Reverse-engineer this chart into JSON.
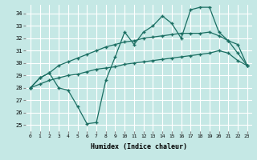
{
  "xlabel": "Humidex (Indice chaleur)",
  "background_color": "#c5e8e5",
  "grid_color": "#ffffff",
  "line_color": "#1a6e62",
  "xlim": [
    -0.5,
    23.5
  ],
  "ylim": [
    24.5,
    34.7
  ],
  "yticks": [
    25,
    26,
    27,
    28,
    29,
    30,
    31,
    32,
    33,
    34
  ],
  "xticks": [
    0,
    1,
    2,
    3,
    4,
    5,
    6,
    7,
    8,
    9,
    10,
    11,
    12,
    13,
    14,
    15,
    16,
    17,
    18,
    19,
    20,
    21,
    22,
    23
  ],
  "line1_x": [
    0,
    1,
    2,
    3,
    4,
    5,
    6,
    7,
    8,
    9,
    10,
    11,
    12,
    13,
    14,
    15,
    16,
    17,
    18,
    19,
    20,
    21,
    22,
    23
  ],
  "line1_y": [
    28.0,
    28.8,
    29.2,
    28.0,
    27.8,
    26.5,
    25.1,
    25.2,
    28.6,
    30.5,
    32.5,
    31.5,
    32.5,
    33.0,
    33.8,
    33.2,
    32.0,
    34.3,
    34.5,
    34.5,
    32.5,
    31.8,
    30.8,
    29.8
  ],
  "line2_x": [
    0,
    1,
    2,
    3,
    4,
    5,
    6,
    7,
    8,
    9,
    10,
    11,
    12,
    13,
    14,
    15,
    16,
    17,
    18,
    19,
    20,
    21,
    22,
    23
  ],
  "line2_y": [
    28.0,
    28.8,
    29.2,
    29.8,
    30.1,
    30.4,
    30.7,
    31.0,
    31.3,
    31.5,
    31.7,
    31.8,
    32.0,
    32.1,
    32.2,
    32.3,
    32.4,
    32.4,
    32.4,
    32.5,
    32.2,
    31.8,
    31.5,
    29.8
  ],
  "line3_x": [
    0,
    1,
    2,
    3,
    4,
    5,
    6,
    7,
    8,
    9,
    10,
    11,
    12,
    13,
    14,
    15,
    16,
    17,
    18,
    19,
    20,
    21,
    22,
    23
  ],
  "line3_y": [
    28.0,
    28.3,
    28.6,
    28.8,
    29.0,
    29.1,
    29.3,
    29.5,
    29.6,
    29.7,
    29.9,
    30.0,
    30.1,
    30.2,
    30.3,
    30.4,
    30.5,
    30.6,
    30.7,
    30.8,
    31.0,
    30.8,
    30.2,
    29.8
  ]
}
